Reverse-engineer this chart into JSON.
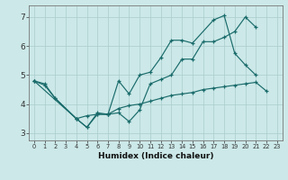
{
  "xlabel": "Humidex (Indice chaleur)",
  "bg_color": "#cce8e8",
  "grid_color": "#aacccc",
  "line_color": "#1a6b6b",
  "ylim": [
    2.75,
    7.4
  ],
  "xlim": [
    -0.5,
    23.5
  ],
  "yticks": [
    3,
    4,
    5,
    6,
    7
  ],
  "top_x": [
    0,
    1,
    2,
    4,
    5,
    6,
    7,
    8,
    9,
    10,
    11,
    12,
    13,
    14,
    15,
    16,
    17,
    18,
    19,
    20,
    21
  ],
  "top_y": [
    4.8,
    4.7,
    4.2,
    3.5,
    3.2,
    3.7,
    3.65,
    3.7,
    3.4,
    3.8,
    4.7,
    4.85,
    5.0,
    5.55,
    5.55,
    6.15,
    6.15,
    6.3,
    6.5,
    7.0,
    6.65
  ],
  "mid_x": [
    0,
    4,
    5,
    6,
    7,
    8,
    9,
    10,
    11,
    12,
    13,
    14,
    15,
    17,
    18,
    19,
    20,
    21
  ],
  "mid_y": [
    4.8,
    3.5,
    3.2,
    3.65,
    3.65,
    4.8,
    4.35,
    5.0,
    5.1,
    5.6,
    6.2,
    6.2,
    6.1,
    6.9,
    7.05,
    5.75,
    5.35,
    5.0
  ],
  "bot_x": [
    0,
    1,
    2,
    4,
    5,
    6,
    7,
    8,
    9,
    10,
    11,
    12,
    13,
    14,
    15,
    16,
    17,
    18,
    19,
    20,
    21,
    22
  ],
  "bot_y": [
    4.8,
    4.65,
    4.2,
    3.5,
    3.6,
    3.65,
    3.65,
    3.85,
    3.95,
    4.0,
    4.1,
    4.2,
    4.3,
    4.35,
    4.4,
    4.5,
    4.55,
    4.6,
    4.65,
    4.7,
    4.75,
    4.45
  ]
}
